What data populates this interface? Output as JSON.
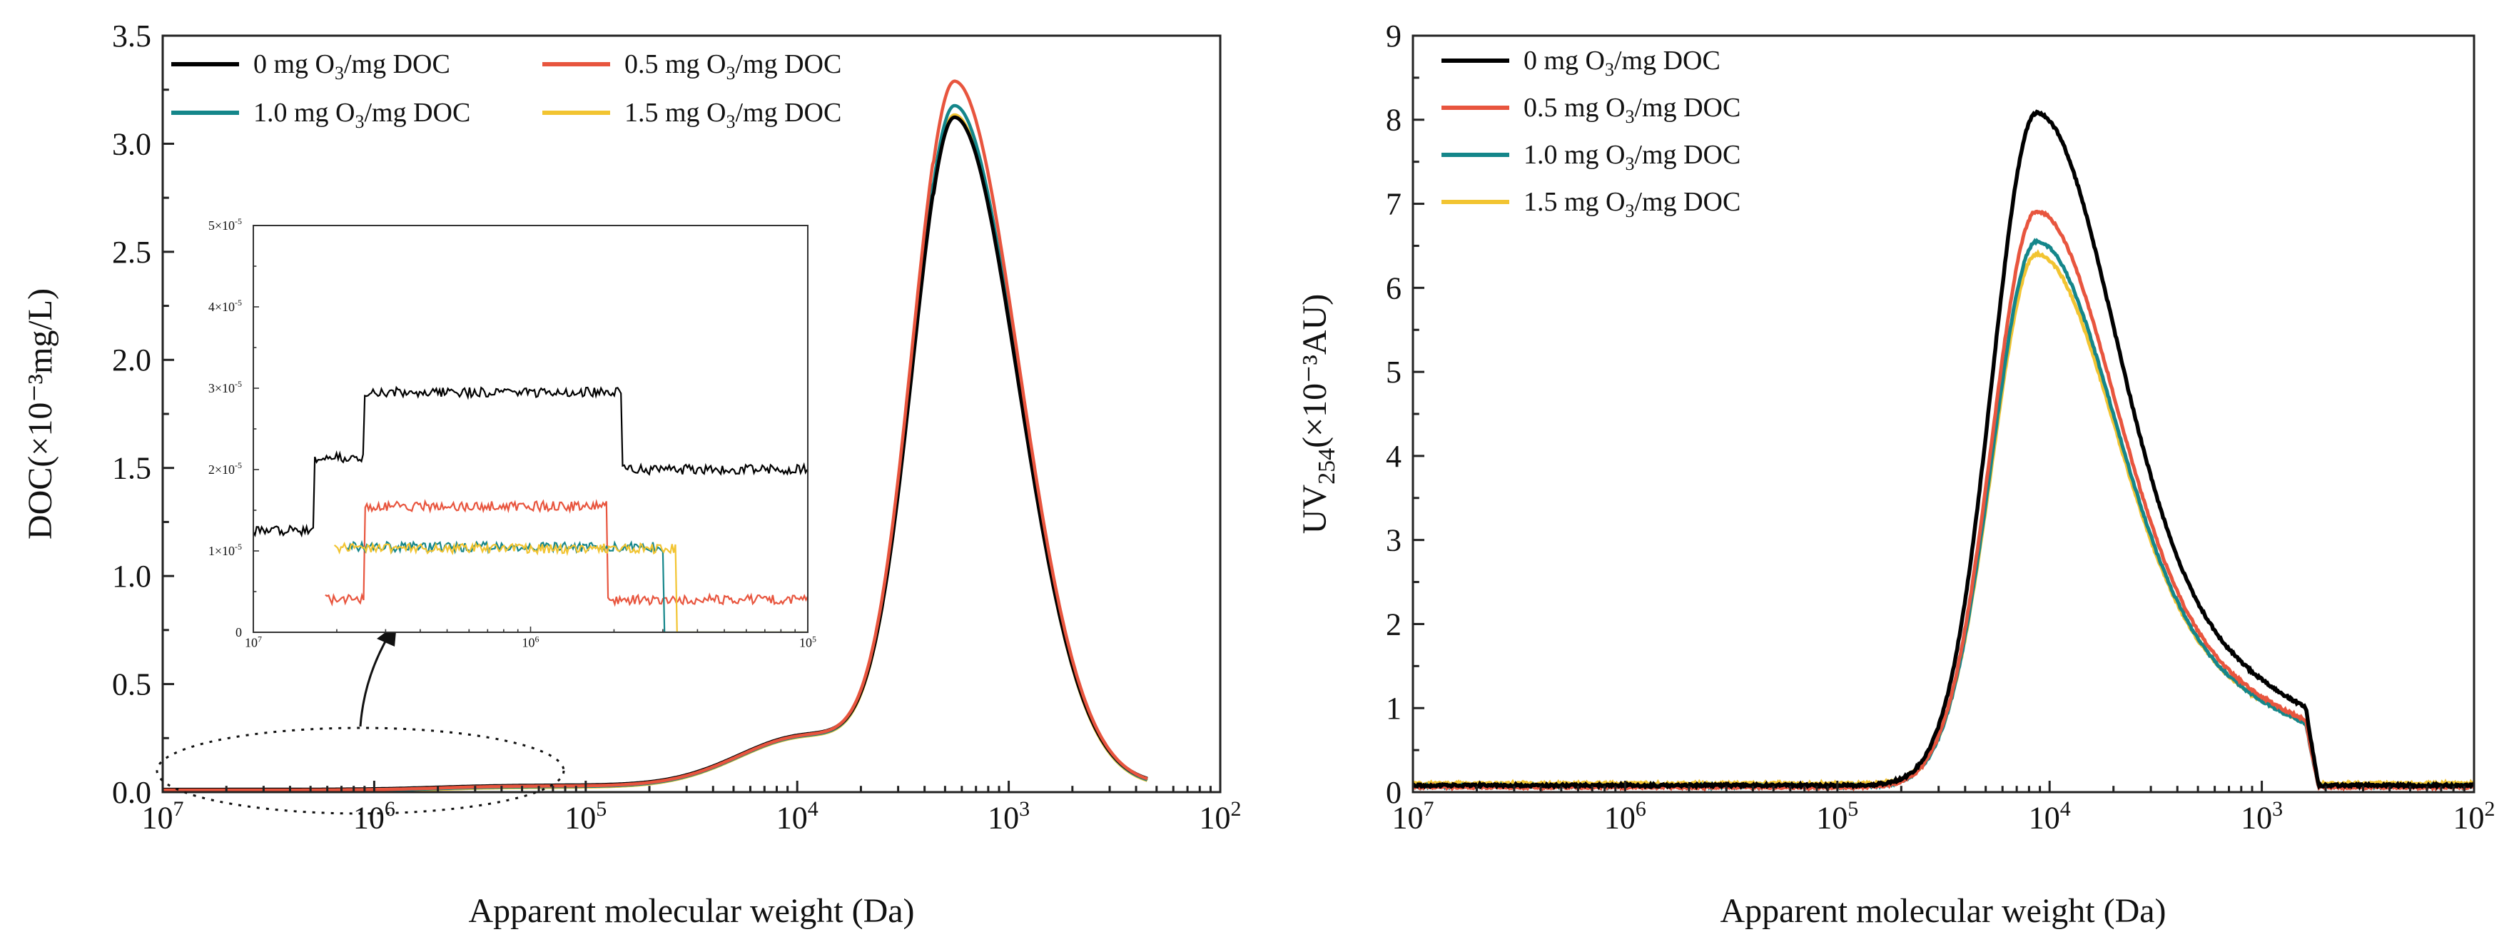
{
  "chart_data": [
    {
      "type": "line",
      "xscale": "log-reversed",
      "xlabel": "Apparent molecular weight (Da)",
      "ylabel": "DOC(×10⁻³mg/L)",
      "xlim": [
        10000000,
        100
      ],
      "ylim": [
        0,
        3.5
      ],
      "x_ticks": [
        {
          "base": "10",
          "exp": "7"
        },
        {
          "base": "10",
          "exp": "6"
        },
        {
          "base": "10",
          "exp": "5"
        },
        {
          "base": "10",
          "exp": "4"
        },
        {
          "base": "10",
          "exp": "3"
        },
        {
          "base": "10",
          "exp": "2"
        }
      ],
      "y_ticks": [
        "0.0",
        "0.5",
        "1.0",
        "1.5",
        "2.0",
        "2.5",
        "3.0",
        "3.5"
      ],
      "legend": {
        "placement": "top-left",
        "columns": 2
      },
      "series": [
        {
          "name": "0 mg O3/mg DOC",
          "label_pre": "0 mg O",
          "label_sub": "3",
          "label_post": "/mg DOC",
          "color": "#000000",
          "peak": 3.08
        },
        {
          "name": "0.5 mg O3/mg DOC",
          "label_pre": "0.5 mg O",
          "label_sub": "3",
          "label_post": "/mg DOC",
          "color": "#e8553e",
          "peak": 3.25
        },
        {
          "name": "1.0 mg O3/mg DOC",
          "label_pre": "1.0 mg O",
          "label_sub": "3",
          "label_post": "/mg DOC",
          "color": "#14868a",
          "peak": 3.14
        },
        {
          "name": "1.5 mg O3/mg DOC",
          "label_pre": "1.5 mg O",
          "label_sub": "3",
          "label_post": "/mg DOC",
          "color": "#f2c431",
          "peak": 3.1
        }
      ],
      "curve_shape": {
        "peak_x": 1800,
        "shoulder_x": 9000,
        "shoulder_y": 0.23,
        "start_x": 800000,
        "end_x": 220
      },
      "inset": {
        "xlim": [
          10000000,
          100000
        ],
        "ylim": [
          0,
          5e-05
        ],
        "x_ticks": [
          {
            "base": "10",
            "exp": "7"
          },
          {
            "base": "10",
            "exp": "6"
          },
          {
            "base": "10",
            "exp": "5"
          }
        ],
        "y_ticks": [
          {
            "pre": "0",
            "exp": ""
          },
          {
            "pre": "1×10",
            "exp": "-5"
          },
          {
            "pre": "2×10",
            "exp": "-5"
          },
          {
            "pre": "3×10",
            "exp": "-5"
          },
          {
            "pre": "4×10",
            "exp": "-5"
          },
          {
            "pre": "5×10",
            "exp": "-5"
          }
        ],
        "series_levels": [
          {
            "steps": [
              [
                10000000,
                1.25e-05
              ],
              [
                6000000,
                2.15e-05
              ],
              [
                4000000,
                2.95e-05
              ],
              [
                470000,
                2e-05
              ],
              [
                100000,
                2e-05
              ]
            ]
          },
          {
            "steps": [
              [
                5500000,
                4e-06
              ],
              [
                4000000,
                1.55e-05
              ],
              [
                530000,
                4e-06
              ],
              [
                100000,
                4e-06
              ]
            ]
          },
          {
            "steps": [
              [
                4600000,
                1.05e-05
              ],
              [
                330000,
                0
              ],
              [
                100000,
                0
              ]
            ]
          },
          {
            "steps": [
              [
                5100000,
                1.03e-05
              ],
              [
                300000,
                0
              ],
              [
                100000,
                0
              ]
            ]
          }
        ]
      }
    },
    {
      "type": "line",
      "xscale": "log-reversed",
      "xlabel": "Apparent molecular weight (Da)",
      "ylabel_pre": "UV",
      "ylabel_sub": "254",
      "ylabel_post": "(×10⁻³AU)",
      "xlim": [
        10000000,
        100
      ],
      "ylim": [
        0,
        9
      ],
      "x_ticks": [
        {
          "base": "10",
          "exp": "7"
        },
        {
          "base": "10",
          "exp": "6"
        },
        {
          "base": "10",
          "exp": "5"
        },
        {
          "base": "10",
          "exp": "4"
        },
        {
          "base": "10",
          "exp": "3"
        },
        {
          "base": "10",
          "exp": "2"
        }
      ],
      "y_ticks": [
        "0",
        "1",
        "2",
        "3",
        "4",
        "5",
        "6",
        "7",
        "8",
        "9"
      ],
      "legend": {
        "placement": "top-left",
        "columns": 1
      },
      "series": [
        {
          "name": "0 mg O3/mg DOC",
          "label_pre": "0 mg O",
          "label_sub": "3",
          "label_post": "/mg DOC",
          "color": "#000000",
          "peak": 8.0,
          "baseline": 0.08
        },
        {
          "name": "0.5 mg O3/mg DOC",
          "label_pre": "0.5 mg O",
          "label_sub": "3",
          "label_post": "/mg DOC",
          "color": "#e8553e",
          "peak": 6.85,
          "baseline": 0.06
        },
        {
          "name": "1.0 mg O3/mg DOC",
          "label_pre": "1.0 mg O",
          "label_sub": "3",
          "label_post": "/mg DOC",
          "color": "#14868a",
          "peak": 6.48,
          "baseline": 0.07
        },
        {
          "name": "1.5 mg O3/mg DOC",
          "label_pre": "1.5 mg O",
          "label_sub": "3",
          "label_post": "/mg DOC",
          "color": "#f2c431",
          "peak": 6.3,
          "baseline": 0.1
        }
      ],
      "curve_shape": {
        "peak_x": 11500,
        "start_x": 90000,
        "end_x": 620
      }
    }
  ]
}
